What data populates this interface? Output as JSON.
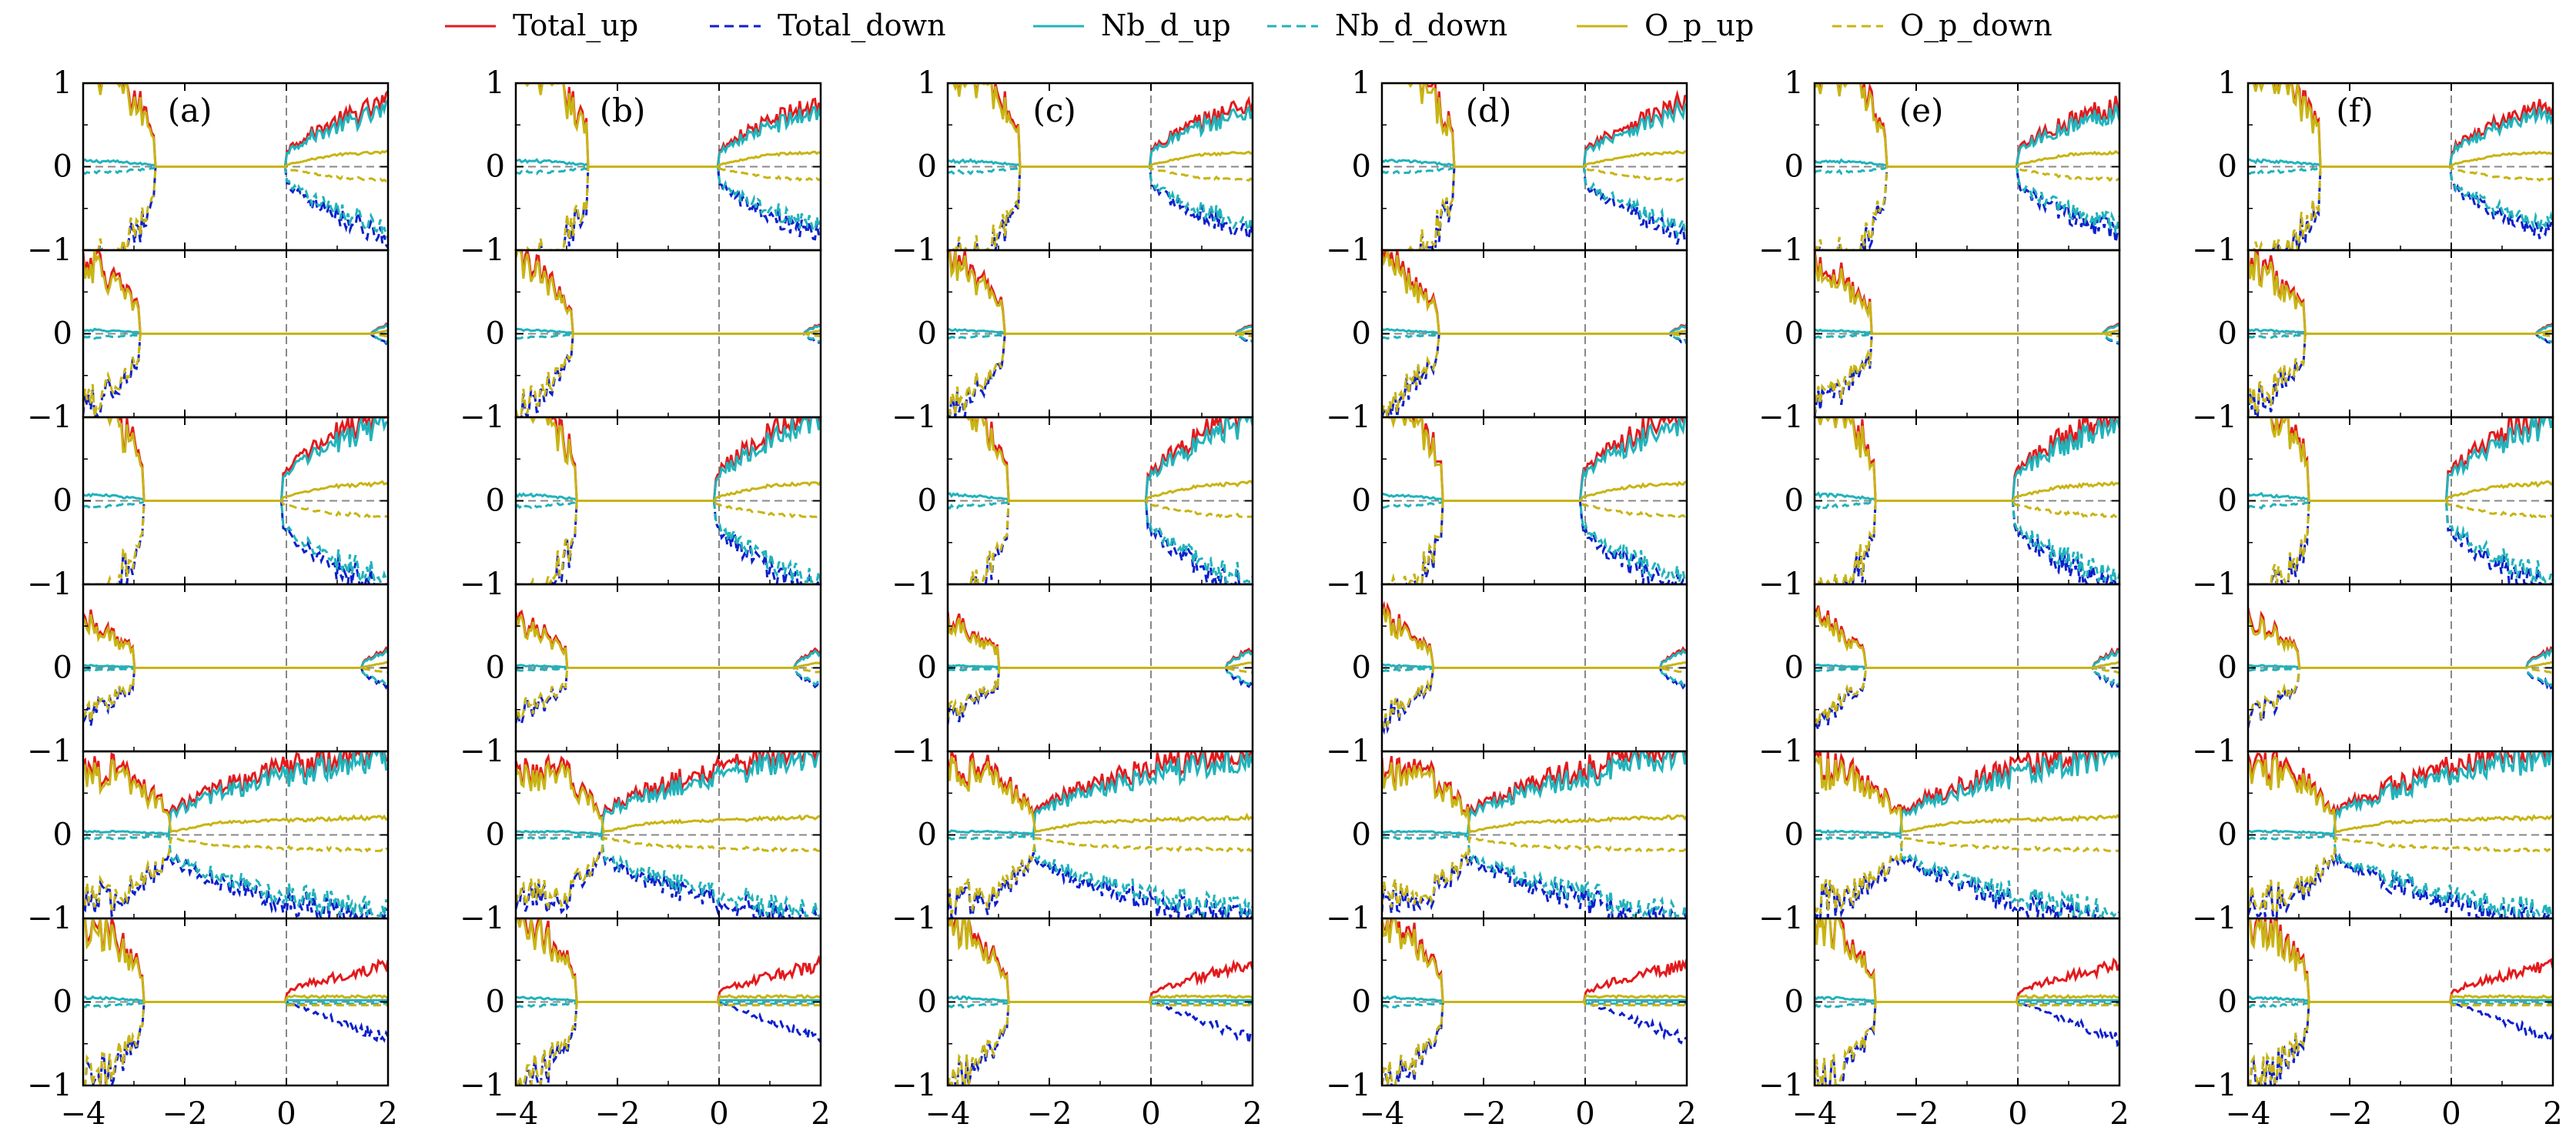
{
  "legend": {
    "placement": "top-center",
    "items": [
      {
        "label": "Total_up",
        "color": "#e31a1c",
        "dash": "solid"
      },
      {
        "label": "Total_down",
        "color": "#0b1fcc",
        "dash": "dashed"
      },
      {
        "label": "Nb_d_up",
        "color": "#21b3bb",
        "dash": "solid"
      },
      {
        "label": "Nb_d_down",
        "color": "#21b3bb",
        "dash": "dashed"
      },
      {
        "label": "O_p_up",
        "color": "#c8b414",
        "dash": "solid"
      },
      {
        "label": "O_p_down",
        "color": "#c8b414",
        "dash": "dashed"
      }
    ]
  },
  "chart_data": {
    "type": "line",
    "layout": "6 columns (a)-(f) x 6 stacked rows",
    "columns": [
      "(a)",
      "(b)",
      "(c)",
      "(d)",
      "(e)",
      "(f)"
    ],
    "xlim": [
      -4,
      2
    ],
    "xticks": [
      "−4",
      "−2",
      "0",
      "2"
    ],
    "ylim": [
      -1,
      1
    ],
    "yticks": [
      "−1",
      "0",
      "1"
    ],
    "zero_line": "dashed gray at x = 0 and y = 0",
    "rows": [
      {
        "kind": "metallic",
        "gap": [
          -2.6,
          0.0
        ],
        "vb_peak": 1.3,
        "cb_peak": 0.7,
        "cb_down": 0.75
      },
      {
        "kind": "insulating",
        "gap": [
          -2.9,
          1.7
        ],
        "vb_peak": 0.9,
        "cb_peak": 0.1,
        "cb_down": 0.1
      },
      {
        "kind": "metallic",
        "gap": [
          -2.8,
          -0.1
        ],
        "vb_peak": 1.4,
        "cb_peak": 1.0,
        "cb_down": 1.0
      },
      {
        "kind": "insulating",
        "gap": [
          -3.0,
          1.5
        ],
        "vb_peak": 0.6,
        "cb_peak": 0.2,
        "cb_down": 0.2
      },
      {
        "kind": "metallic-up",
        "gap": [
          -2.3,
          -2.3
        ],
        "vb_peak": 0.8,
        "cb_peak": 1.0,
        "cb_down": 1.0
      },
      {
        "kind": "half-metallic-total",
        "gap": [
          -2.8,
          0.0
        ],
        "vb_peak": 1.0,
        "cb_peak": 0.4,
        "cb_down": 0.45
      }
    ]
  }
}
